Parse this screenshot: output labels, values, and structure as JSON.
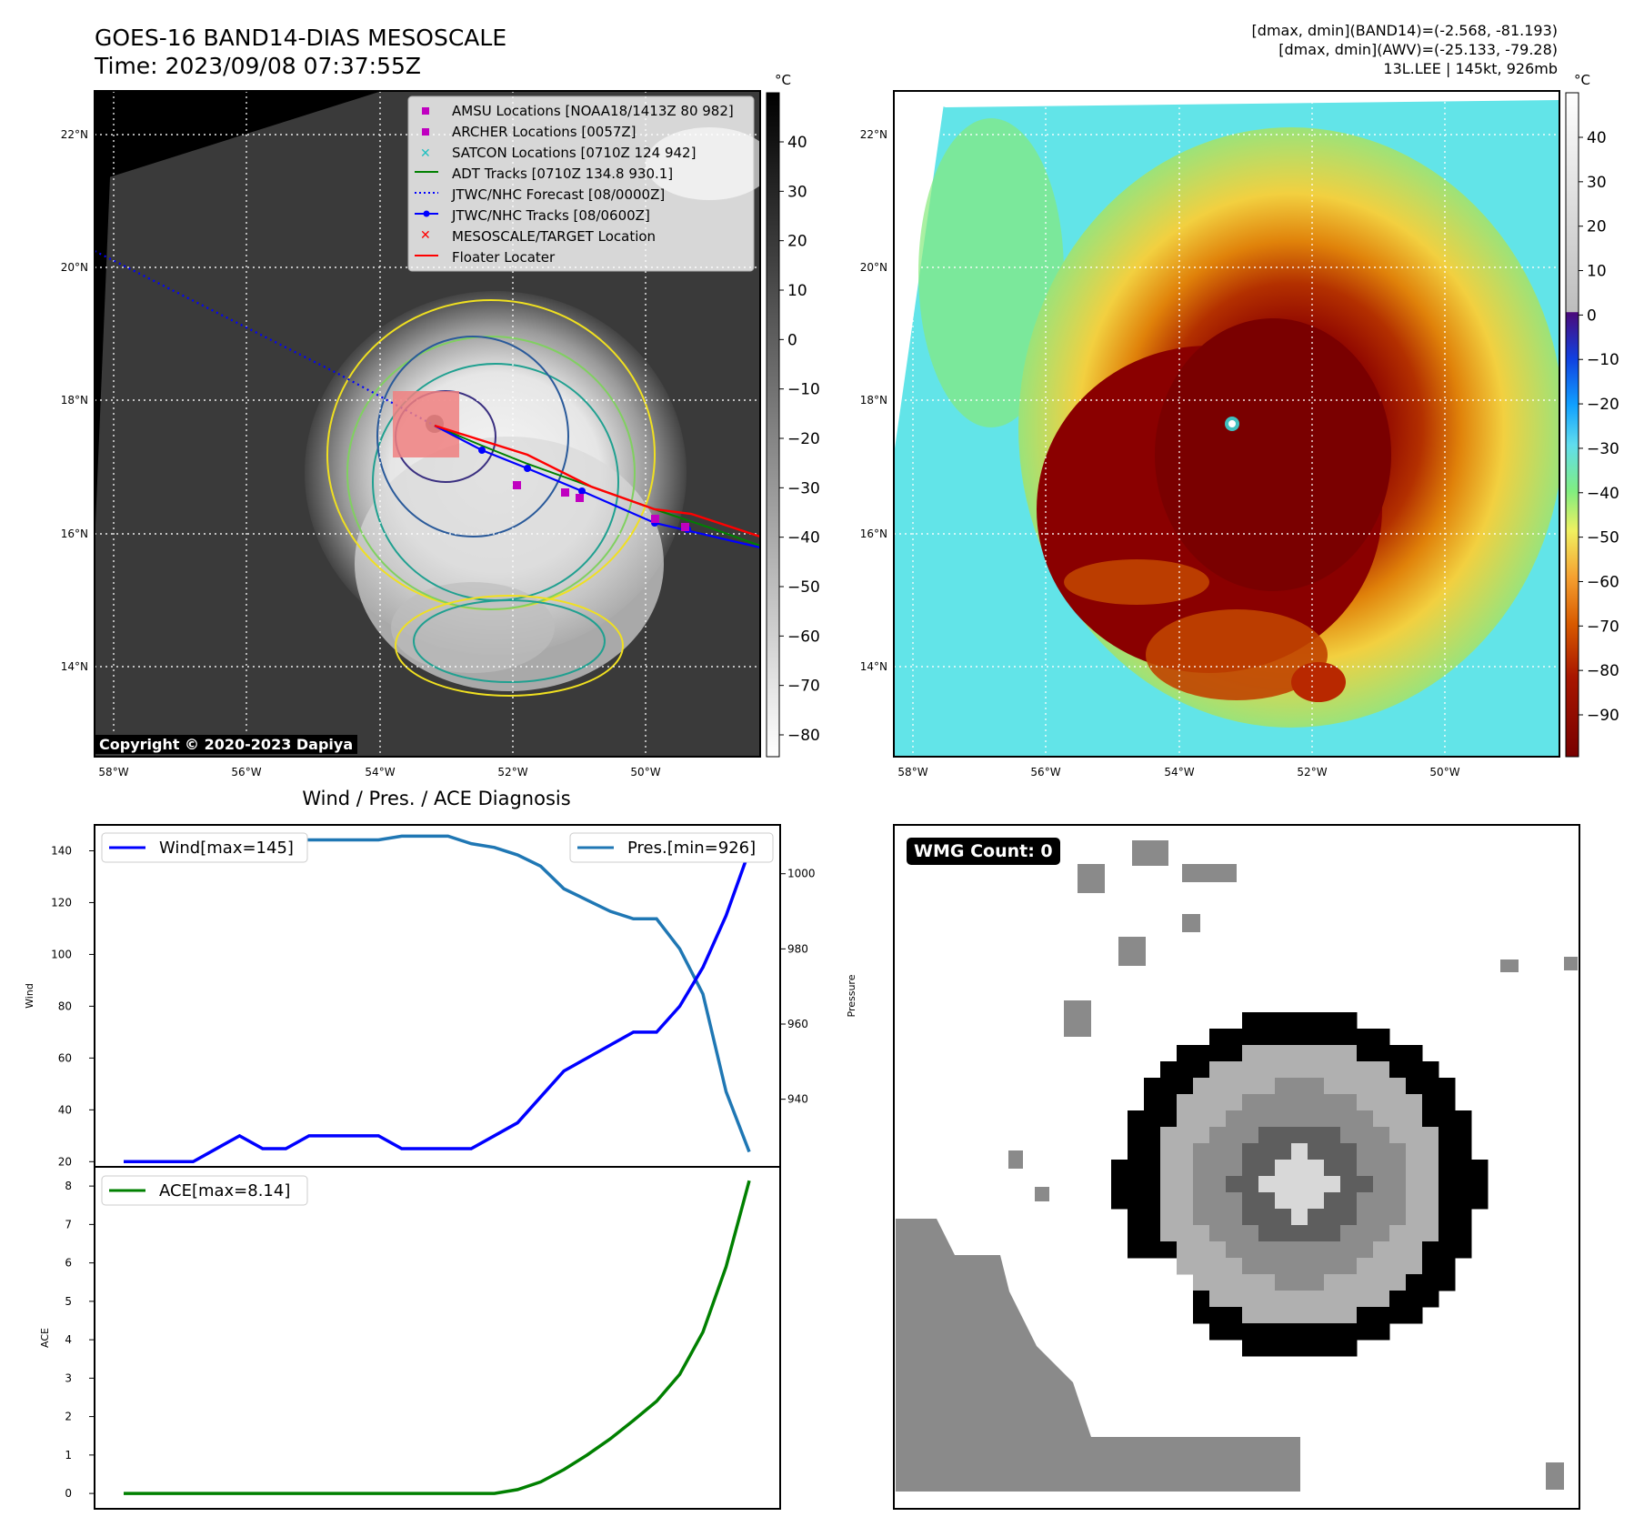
{
  "header": {
    "title_line1": "GOES-16 BAND14-DIAS MESOSCALE",
    "title_line2": "Time: 2023/09/08 07:37:55Z",
    "stat_line1": "[dmax, dmin](BAND14)=(-2.568, -81.193)",
    "stat_line2": "[dmax, dmin](AWV)=(-25.133, -79.28)",
    "stat_line3": "13L.LEE | 145kt, 926mb"
  },
  "maps": {
    "lat_labels": [
      "22°N",
      "20°N",
      "18°N",
      "16°N",
      "14°N"
    ],
    "lon_labels": [
      "58°W",
      "56°W",
      "54°W",
      "52°W",
      "50°W"
    ],
    "copyright": "Copyright © 2020-2023 Dapiya",
    "unit": "°C",
    "gray_cbar_ticks": [
      "40",
      "30",
      "20",
      "10",
      "0",
      "−10",
      "−20",
      "−30",
      "−40",
      "−50",
      "−60",
      "−70",
      "−80"
    ],
    "color_cbar_ticks": [
      "40",
      "30",
      "20",
      "10",
      "0",
      "−10",
      "−20",
      "−30",
      "−40",
      "−50",
      "−60",
      "−70",
      "−80",
      "−90"
    ],
    "legend": [
      {
        "label": "AMSU Locations [NOAA18/1413Z 80 982]",
        "color": "#c000c0",
        "marker": "square"
      },
      {
        "label": "ARCHER Locations [0057Z]",
        "color": "#c000c0",
        "marker": "square"
      },
      {
        "label": "SATCON Locations [0710Z 124 942]",
        "color": "#20c0c0",
        "marker": "x"
      },
      {
        "label": "ADT Tracks [0710Z 134.8 930.1]",
        "color": "#008000",
        "marker": "line"
      },
      {
        "label": "JTWC/NHC Forecast [08/0000Z]",
        "color": "#0000ff",
        "marker": "dotted"
      },
      {
        "label": "JTWC/NHC Tracks [08/0600Z]",
        "color": "#0000ff",
        "marker": "line-dot"
      },
      {
        "label": "MESOSCALE/TARGET Location",
        "color": "#ff0000",
        "marker": "x"
      },
      {
        "label": "Floater Locater",
        "color": "#ff0000",
        "marker": "line"
      }
    ]
  },
  "chart_data": [
    {
      "type": "line",
      "title": "Wind / Pres. / ACE Diagnosis",
      "ylabel": "Wind",
      "ylabel_right": "Pressure",
      "ylim": [
        18,
        150
      ],
      "ylim_right": [
        922,
        1013
      ],
      "y_ticks": [
        20,
        40,
        60,
        80,
        100,
        120,
        140
      ],
      "y_ticks_right": [
        940,
        960,
        980,
        1000
      ],
      "series": [
        {
          "name": "Wind[max=145]",
          "color": "#0000ff",
          "values": [
            20,
            20,
            20,
            20,
            25,
            30,
            25,
            25,
            30,
            30,
            30,
            30,
            25,
            25,
            25,
            25,
            30,
            35,
            45,
            55,
            60,
            65,
            70,
            70,
            80,
            95,
            115,
            140
          ]
        },
        {
          "name": "Pres.[min=926]",
          "color": "#1f77b4",
          "axis": "right",
          "values": [
            1010,
            1010,
            1010,
            1010,
            1009,
            1009,
            1009,
            1009,
            1009,
            1009,
            1009,
            1009,
            1010,
            1010,
            1010,
            1008,
            1007,
            1005,
            1002,
            996,
            993,
            990,
            988,
            988,
            980,
            968,
            942,
            926
          ]
        }
      ]
    },
    {
      "type": "line",
      "ylabel": "ACE",
      "ylim": [
        -0.4,
        8.5
      ],
      "y_ticks": [
        0,
        1,
        2,
        3,
        4,
        5,
        6,
        7,
        8
      ],
      "series": [
        {
          "name": "ACE[max=8.14]",
          "color": "#008000",
          "values": [
            0,
            0,
            0,
            0,
            0,
            0,
            0,
            0,
            0,
            0,
            0,
            0,
            0,
            0,
            0,
            0,
            0,
            0.1,
            0.3,
            0.62,
            1.0,
            1.42,
            1.9,
            2.4,
            3.1,
            4.2,
            5.9,
            8.14
          ]
        }
      ]
    }
  ],
  "wmg": {
    "label": "WMG Count: 0"
  }
}
